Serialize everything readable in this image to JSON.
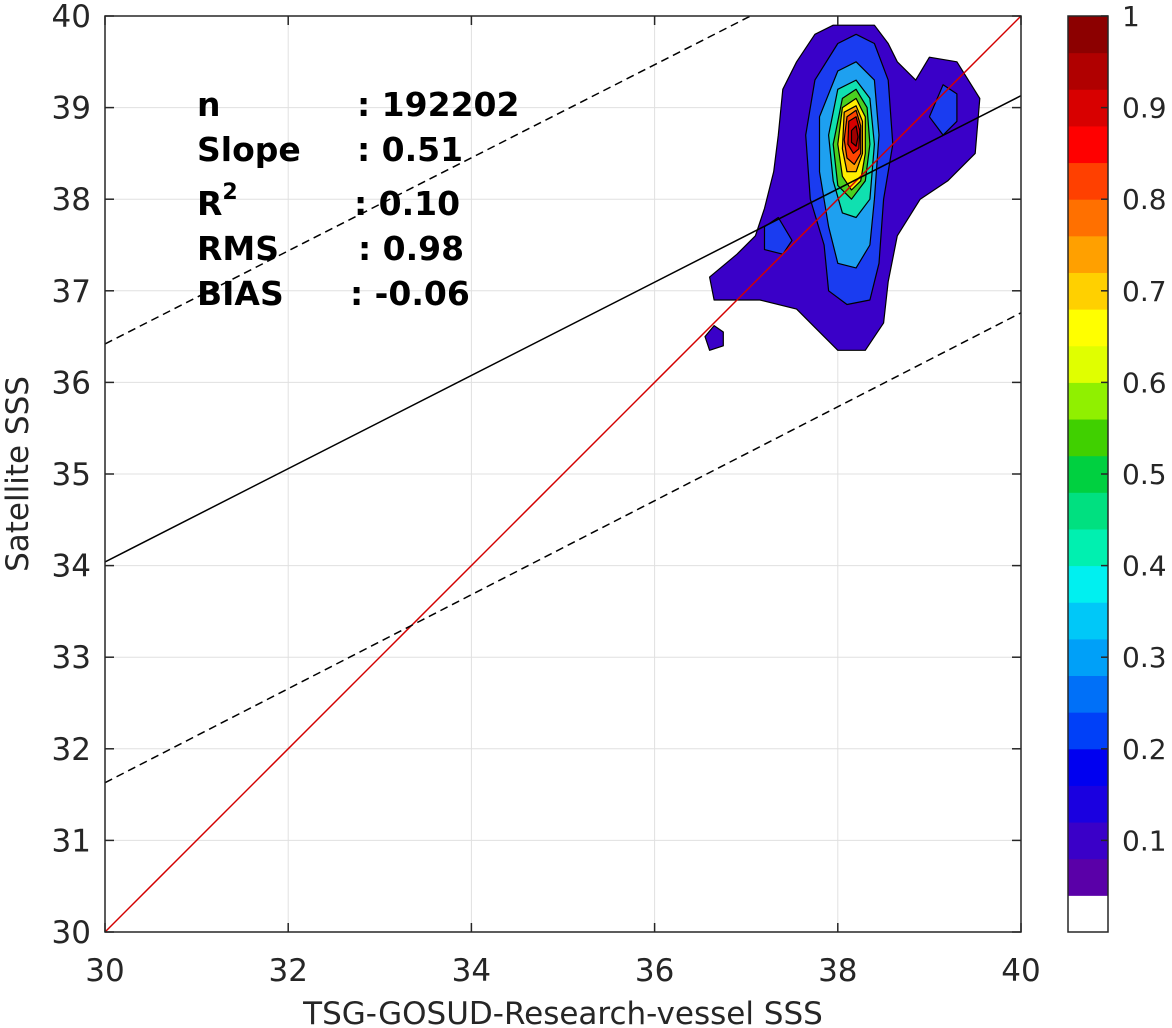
{
  "chart_data": {
    "type": "heatmap",
    "subtype": "filled-contour density scatter",
    "xlabel": "TSG-GOSUD-Research-vessel SSS",
    "ylabel": "Satellite SSS",
    "xlim": [
      30,
      40
    ],
    "ylim": [
      30,
      40
    ],
    "xticks": [
      30,
      32,
      34,
      36,
      38,
      40
    ],
    "yticks": [
      30,
      31,
      32,
      33,
      34,
      35,
      36,
      37,
      38,
      39,
      40
    ],
    "grid": true,
    "stats": {
      "n_label": "n",
      "n_value": ": 192202",
      "slope_label": "Slope",
      "slope_value": ": 0.51",
      "r2_label": "R",
      "r2_sup": "2",
      "r2_value": ": 0.10",
      "rms_label": "RMS",
      "rms_value": ": 0.98",
      "bias_label": "BIAS",
      "bias_value": ": -0.06"
    },
    "lines": [
      {
        "style": "solid",
        "color": "#d40000",
        "x": [
          30,
          40
        ],
        "y": [
          30,
          40
        ]
      },
      {
        "style": "solid",
        "color": "#000000",
        "x": [
          30,
          40
        ],
        "y": [
          34.04,
          39.13
        ]
      },
      {
        "style": "dashed",
        "color": "#000000",
        "x": [
          30,
          40
        ],
        "y": [
          36.42,
          41.5
        ]
      },
      {
        "style": "dashed",
        "color": "#000000",
        "x": [
          30,
          40
        ],
        "y": [
          31.63,
          36.76
        ]
      }
    ],
    "contours": [
      {
        "level": 0.05,
        "color": "#3a00c8",
        "points": [
          [
            37.95,
            39.9
          ],
          [
            38.4,
            39.9
          ],
          [
            38.55,
            39.7
          ],
          [
            38.65,
            39.5
          ],
          [
            38.85,
            39.3
          ],
          [
            39.0,
            39.55
          ],
          [
            39.3,
            39.5
          ],
          [
            39.55,
            39.1
          ],
          [
            39.5,
            38.5
          ],
          [
            39.2,
            38.2
          ],
          [
            38.9,
            38.0
          ],
          [
            38.65,
            37.6
          ],
          [
            38.55,
            37.1
          ],
          [
            38.5,
            36.65
          ],
          [
            38.3,
            36.35
          ],
          [
            38.0,
            36.35
          ],
          [
            37.75,
            36.6
          ],
          [
            37.55,
            36.8
          ],
          [
            37.15,
            36.9
          ],
          [
            36.65,
            36.9
          ],
          [
            36.6,
            37.15
          ],
          [
            36.9,
            37.4
          ],
          [
            37.1,
            37.6
          ],
          [
            37.2,
            37.9
          ],
          [
            37.3,
            38.3
          ],
          [
            37.35,
            38.7
          ],
          [
            37.4,
            39.2
          ],
          [
            37.55,
            39.5
          ],
          [
            37.75,
            39.8
          ]
        ]
      },
      {
        "level": 0.05,
        "color": "#3a00c8",
        "points": [
          [
            36.55,
            36.5
          ],
          [
            36.6,
            36.35
          ],
          [
            36.75,
            36.4
          ],
          [
            36.75,
            36.55
          ],
          [
            36.65,
            36.62
          ]
        ]
      },
      {
        "level": 0.15,
        "color": "#1a3cf0",
        "points": [
          [
            38.0,
            39.7
          ],
          [
            38.2,
            39.8
          ],
          [
            38.4,
            39.7
          ],
          [
            38.55,
            39.3
          ],
          [
            38.6,
            38.6
          ],
          [
            38.5,
            38.0
          ],
          [
            38.45,
            37.3
          ],
          [
            38.35,
            36.9
          ],
          [
            38.1,
            36.85
          ],
          [
            37.9,
            37.0
          ],
          [
            37.85,
            37.5
          ],
          [
            37.7,
            38.0
          ],
          [
            37.65,
            38.7
          ],
          [
            37.75,
            39.3
          ]
        ]
      },
      {
        "level": 0.15,
        "color": "#1a3cf0",
        "points": [
          [
            37.2,
            37.45
          ],
          [
            37.2,
            37.7
          ],
          [
            37.35,
            37.8
          ],
          [
            37.5,
            37.55
          ],
          [
            37.4,
            37.4
          ]
        ]
      },
      {
        "level": 0.15,
        "color": "#1a3cf0",
        "points": [
          [
            39.0,
            38.9
          ],
          [
            39.15,
            38.7
          ],
          [
            39.3,
            38.85
          ],
          [
            39.3,
            39.15
          ],
          [
            39.15,
            39.25
          ]
        ]
      },
      {
        "level": 0.3,
        "color": "#1ea0f0",
        "points": [
          [
            38.0,
            39.4
          ],
          [
            38.2,
            39.5
          ],
          [
            38.4,
            39.3
          ],
          [
            38.45,
            38.7
          ],
          [
            38.4,
            38.0
          ],
          [
            38.35,
            37.5
          ],
          [
            38.2,
            37.25
          ],
          [
            38.0,
            37.3
          ],
          [
            37.9,
            37.7
          ],
          [
            37.8,
            38.3
          ],
          [
            37.8,
            38.9
          ]
        ]
      },
      {
        "level": 0.4,
        "color": "#10e0b0",
        "points": [
          [
            38.0,
            39.2
          ],
          [
            38.2,
            39.3
          ],
          [
            38.35,
            39.1
          ],
          [
            38.4,
            38.6
          ],
          [
            38.35,
            38.0
          ],
          [
            38.2,
            37.8
          ],
          [
            38.05,
            37.85
          ],
          [
            37.95,
            38.2
          ],
          [
            37.9,
            38.7
          ]
        ]
      },
      {
        "level": 0.5,
        "color": "#4ad020",
        "points": [
          [
            38.05,
            39.1
          ],
          [
            38.2,
            39.2
          ],
          [
            38.32,
            39.0
          ],
          [
            38.35,
            38.6
          ],
          [
            38.3,
            38.2
          ],
          [
            38.15,
            38.0
          ],
          [
            38.0,
            38.15
          ],
          [
            37.95,
            38.6
          ]
        ]
      },
      {
        "level": 0.6,
        "color": "#ffee00",
        "points": [
          [
            38.05,
            39.0
          ],
          [
            38.2,
            39.1
          ],
          [
            38.3,
            38.9
          ],
          [
            38.3,
            38.5
          ],
          [
            38.25,
            38.2
          ],
          [
            38.15,
            38.1
          ],
          [
            38.05,
            38.25
          ],
          [
            38.0,
            38.6
          ]
        ]
      },
      {
        "level": 0.7,
        "color": "#ffa000",
        "points": [
          [
            38.07,
            38.95
          ],
          [
            38.2,
            39.02
          ],
          [
            38.27,
            38.85
          ],
          [
            38.27,
            38.5
          ],
          [
            38.2,
            38.3
          ],
          [
            38.1,
            38.3
          ],
          [
            38.05,
            38.55
          ]
        ]
      },
      {
        "level": 0.8,
        "color": "#ff4400",
        "points": [
          [
            38.1,
            38.9
          ],
          [
            38.2,
            38.97
          ],
          [
            38.25,
            38.8
          ],
          [
            38.25,
            38.5
          ],
          [
            38.18,
            38.38
          ],
          [
            38.1,
            38.45
          ],
          [
            38.07,
            38.65
          ]
        ]
      },
      {
        "level": 0.9,
        "color": "#d80000",
        "points": [
          [
            38.12,
            38.85
          ],
          [
            38.2,
            38.9
          ],
          [
            38.24,
            38.75
          ],
          [
            38.23,
            38.55
          ],
          [
            38.17,
            38.5
          ],
          [
            38.11,
            38.6
          ]
        ]
      },
      {
        "level": 0.95,
        "color": "#a00000",
        "points": [
          [
            38.15,
            38.75
          ],
          [
            38.2,
            38.8
          ],
          [
            38.22,
            38.68
          ],
          [
            38.2,
            38.58
          ],
          [
            38.15,
            38.62
          ]
        ]
      }
    ],
    "colorbar": {
      "range": [
        0,
        1
      ],
      "ticks": [
        "0.1",
        "0.2",
        "0.3",
        "0.4",
        "0.5",
        "0.6",
        "0.7",
        "0.8",
        "0.9",
        "1"
      ],
      "colors": [
        "#ffffff",
        "#5a00a8",
        "#3a00c8",
        "#1a00e0",
        "#0000f0",
        "#0040f8",
        "#0070f8",
        "#00a0f8",
        "#00c8f8",
        "#00f0f0",
        "#00f0b0",
        "#00e080",
        "#00d040",
        "#40d000",
        "#90f000",
        "#e0ff00",
        "#ffff00",
        "#ffd000",
        "#ffa000",
        "#ff7000",
        "#ff4000",
        "#ff0000",
        "#d80000",
        "#b00000",
        "#8c0000"
      ]
    }
  }
}
